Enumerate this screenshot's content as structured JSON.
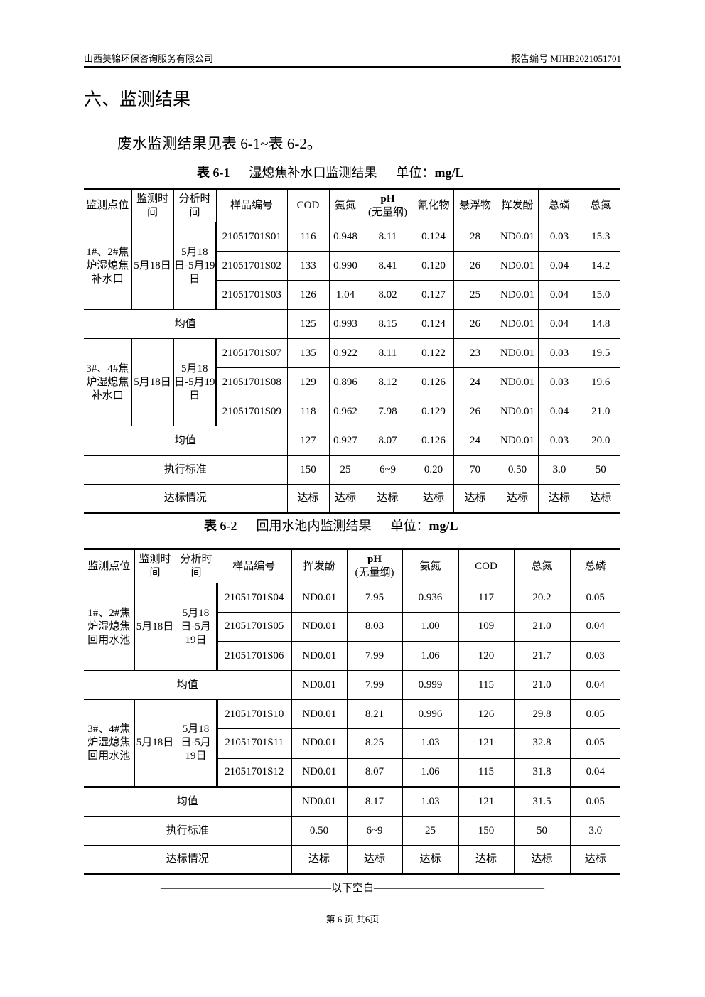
{
  "header": {
    "company": "山西美锦环保咨询服务有限公司",
    "report_no": "报告编号 MJHB2021051701"
  },
  "section_title": "六、监测结果",
  "intro": "废水监测结果见表 6-1~表 6-2。",
  "table1": {
    "caption_no": "表 6-1",
    "caption_title": "湿熄焦补水口监测结果",
    "caption_unit_label": "单位：",
    "caption_unit": "mg/L",
    "headers": [
      "监测点位",
      "监测时间",
      "分析时间",
      "样品编号",
      "COD",
      "氨氮",
      "pH",
      "(无量纲)",
      "氰化物",
      "悬浮物",
      "挥发酚",
      "总磷",
      "总氮"
    ],
    "groups": [
      {
        "location": "1#、2#焦炉湿熄焦补水口",
        "monitor_time": "5月18日",
        "analysis_time": "5月18日-5月19日",
        "rows": [
          [
            "21051701S01",
            "116",
            "0.948",
            "8.11",
            "0.124",
            "28",
            "ND0.01",
            "0.03",
            "15.3"
          ],
          [
            "21051701S02",
            "133",
            "0.990",
            "8.41",
            "0.120",
            "26",
            "ND0.01",
            "0.04",
            "14.2"
          ],
          [
            "21051701S03",
            "126",
            "1.04",
            "8.02",
            "0.127",
            "25",
            "ND0.01",
            "0.04",
            "15.0"
          ]
        ],
        "mean_label": "均值",
        "mean": [
          "125",
          "0.993",
          "8.15",
          "0.124",
          "26",
          "ND0.01",
          "0.04",
          "14.8"
        ]
      },
      {
        "location": "3#、4#焦炉湿熄焦补水口",
        "monitor_time": "5月18日",
        "analysis_time": "5月18日-5月19日",
        "rows": [
          [
            "21051701S07",
            "135",
            "0.922",
            "8.11",
            "0.122",
            "23",
            "ND0.01",
            "0.03",
            "19.5"
          ],
          [
            "21051701S08",
            "129",
            "0.896",
            "8.12",
            "0.126",
            "24",
            "ND0.01",
            "0.03",
            "19.6"
          ],
          [
            "21051701S09",
            "118",
            "0.962",
            "7.98",
            "0.129",
            "26",
            "ND0.01",
            "0.04",
            "21.0"
          ]
        ],
        "mean_label": "均值",
        "mean": [
          "127",
          "0.927",
          "8.07",
          "0.126",
          "24",
          "ND0.01",
          "0.03",
          "20.0"
        ]
      }
    ],
    "standard_label": "执行标准",
    "standard": [
      "150",
      "25",
      "6~9",
      "0.20",
      "70",
      "0.50",
      "3.0",
      "50"
    ],
    "compliance_label": "达标情况",
    "compliance": [
      "达标",
      "达标",
      "达标",
      "达标",
      "达标",
      "达标",
      "达标",
      "达标"
    ]
  },
  "table2": {
    "caption_no": "表 6-2",
    "caption_title": "回用水池内监测结果",
    "caption_unit_label": "单位：",
    "caption_unit": "mg/L",
    "headers": [
      "监测点位",
      "监测时间",
      "分析时间",
      "样品编号",
      "挥发酚",
      "pH",
      "(无量纲)",
      "氨氮",
      "COD",
      "总氮",
      "总磷"
    ],
    "groups": [
      {
        "location": "1#、2#焦炉湿熄焦回用水池",
        "monitor_time": "5月18日",
        "analysis_time": "5月18日-5月19日",
        "rows": [
          [
            "21051701S04",
            "ND0.01",
            "7.95",
            "0.936",
            "117",
            "20.2",
            "0.05"
          ],
          [
            "21051701S05",
            "ND0.01",
            "8.03",
            "1.00",
            "109",
            "21.0",
            "0.04"
          ],
          [
            "21051701S06",
            "ND0.01",
            "7.99",
            "1.06",
            "120",
            "21.7",
            "0.03"
          ]
        ],
        "mean_label": "均值",
        "mean": [
          "ND0.01",
          "7.99",
          "0.999",
          "115",
          "21.0",
          "0.04"
        ]
      },
      {
        "location": "3#、4#焦炉湿熄焦回用水池",
        "monitor_time": "5月18日",
        "analysis_time": "5月18日-5月19日",
        "rows": [
          [
            "21051701S10",
            "ND0.01",
            "8.21",
            "0.996",
            "126",
            "29.8",
            "0.05"
          ],
          [
            "21051701S11",
            "ND0.01",
            "8.25",
            "1.03",
            "121",
            "32.8",
            "0.05"
          ],
          [
            "21051701S12",
            "ND0.01",
            "8.07",
            "1.06",
            "115",
            "31.8",
            "0.04"
          ]
        ],
        "mean_label": "均值",
        "mean": [
          "ND0.01",
          "8.17",
          "1.03",
          "121",
          "31.5",
          "0.05"
        ]
      }
    ],
    "standard_label": "执行标准",
    "standard": [
      "0.50",
      "6~9",
      "25",
      "150",
      "50",
      "3.0"
    ],
    "compliance_label": "达标情况",
    "compliance": [
      "达标",
      "达标",
      "达标",
      "达标",
      "达标",
      "达标"
    ]
  },
  "blank_note": "————————————————以下空白————————————————",
  "footer": "第 6 页 共6页"
}
